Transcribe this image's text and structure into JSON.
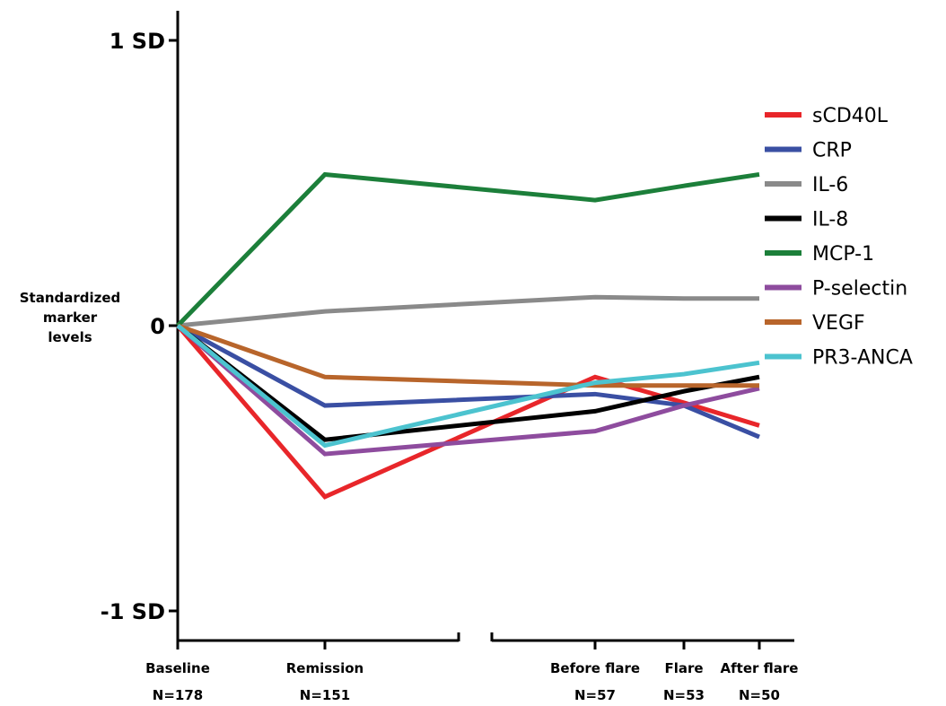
{
  "chart_data": {
    "type": "line",
    "ylabel": [
      "Standardized",
      "marker",
      "levels"
    ],
    "y_ticks": [
      {
        "value": 1,
        "label": "1 SD"
      },
      {
        "value": 0,
        "label": "0"
      },
      {
        "value": -1,
        "label": "-1 SD"
      }
    ],
    "ylim": [
      -1.12,
      1.1
    ],
    "categories": [
      {
        "name": "Baseline",
        "n": "N=178"
      },
      {
        "name": "Remission",
        "n": "N=151"
      },
      {
        "name": "Before flare",
        "n": "N=57"
      },
      {
        "name": "Flare",
        "n": "N=53"
      },
      {
        "name": "After flare",
        "n": "N=50"
      }
    ],
    "axis_break": "between Remission and Before flare",
    "grid": false,
    "legend_position": "right",
    "series": [
      {
        "name": "sCD40L",
        "color": "#e8262a",
        "values": [
          0,
          -0.6,
          -0.18,
          -0.27,
          -0.35
        ]
      },
      {
        "name": "CRP",
        "color": "#3a4fa3",
        "values": [
          0,
          -0.28,
          -0.24,
          -0.28,
          -0.39
        ]
      },
      {
        "name": "IL-6",
        "color": "#8a8a8a",
        "values": [
          0,
          0.05,
          0.1,
          0.095,
          0.095
        ]
      },
      {
        "name": "IL-8",
        "color": "#000000",
        "values": [
          0,
          -0.4,
          -0.3,
          -0.23,
          -0.18
        ]
      },
      {
        "name": "MCP-1",
        "color": "#1c7f3a",
        "values": [
          0,
          0.53,
          0.44,
          0.49,
          0.53
        ]
      },
      {
        "name": "P-selectin",
        "color": "#8e4c9e",
        "values": [
          0,
          -0.45,
          -0.37,
          -0.28,
          -0.22
        ]
      },
      {
        "name": "VEGF",
        "color": "#b8652b",
        "values": [
          0,
          -0.18,
          -0.21,
          -0.21,
          -0.21
        ]
      },
      {
        "name": "PR3-ANCA",
        "color": "#4cc3cf",
        "values": [
          0,
          -0.42,
          -0.2,
          -0.17,
          -0.13
        ]
      }
    ]
  }
}
